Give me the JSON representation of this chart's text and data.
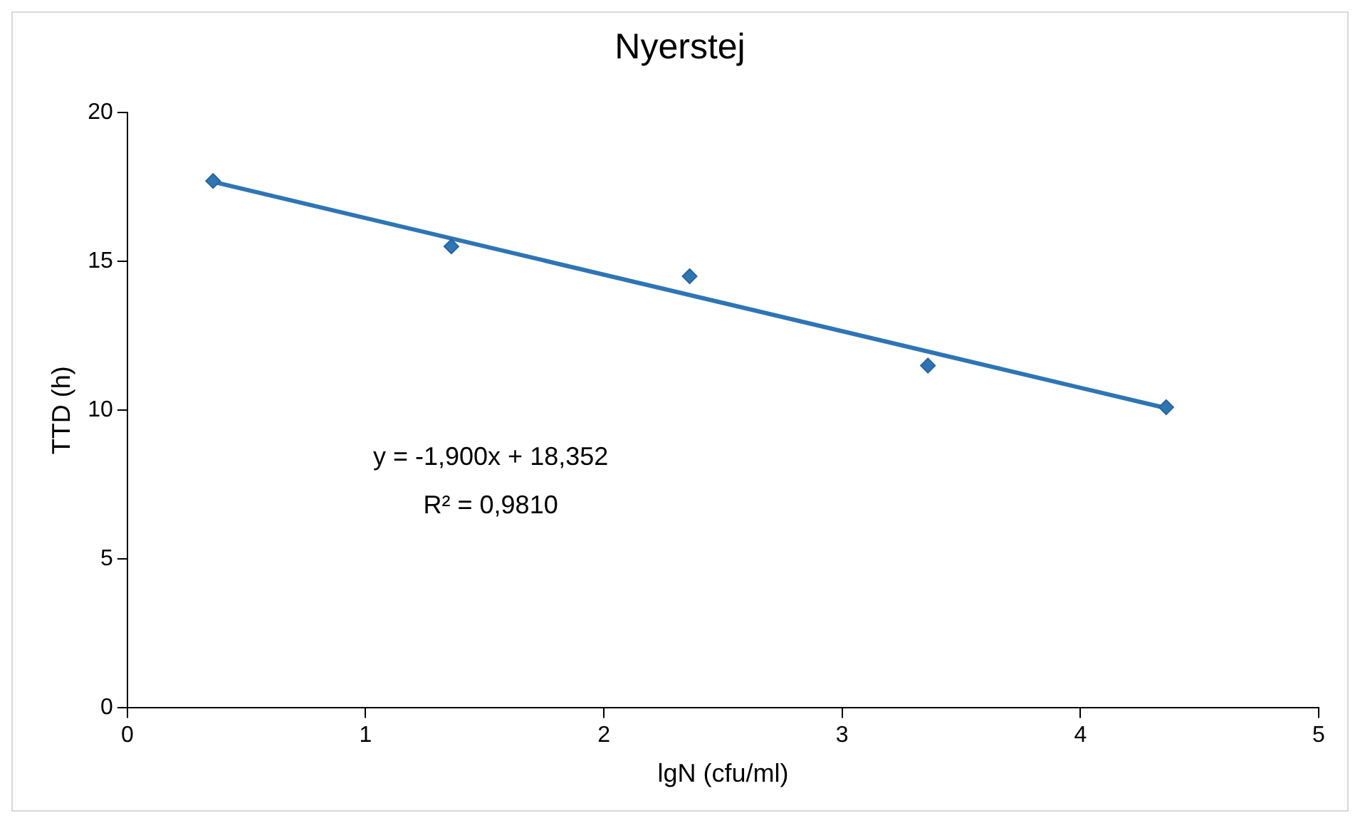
{
  "chart_data": {
    "type": "scatter",
    "title": "Nyerstej",
    "xlabel": "lgN (cfu/ml)",
    "ylabel": "TTD (h)",
    "x": [
      0.36,
      1.36,
      2.36,
      3.36,
      4.36
    ],
    "series": [
      {
        "type": "scatter",
        "color": "#2e75b6",
        "values": [
          17.7,
          15.5,
          14.5,
          11.5,
          10.1
        ],
        "marker": "diamond"
      },
      {
        "type": "line",
        "color": "#2e75b6",
        "x": [
          0.36,
          4.36
        ],
        "values": [
          17.67,
          10.07
        ],
        "marker": "none",
        "line_style": "solid"
      }
    ],
    "xlim": [
      0,
      5
    ],
    "xticks": [
      0,
      1,
      2,
      3,
      4,
      5
    ],
    "ylim": [
      0,
      20
    ],
    "yticks": [
      0,
      5,
      10,
      15,
      20
    ],
    "grid": false,
    "legend": false,
    "annotations": [
      "y = -1,900x + 18,352",
      "R² = 0,9810"
    ]
  }
}
